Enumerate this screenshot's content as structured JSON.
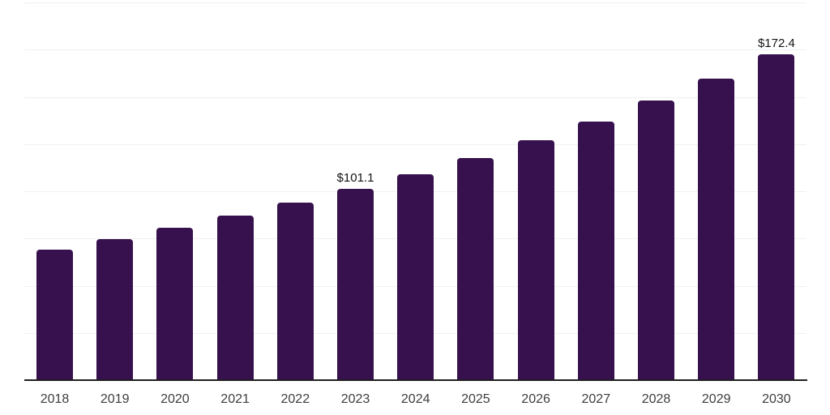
{
  "chart_data": {
    "type": "bar",
    "title": "",
    "categories": [
      "2018",
      "2019",
      "2020",
      "2021",
      "2022",
      "2023",
      "2024",
      "2025",
      "2026",
      "2027",
      "2028",
      "2029",
      "2030"
    ],
    "series": [
      {
        "name": "market-size",
        "values": [
          69.3,
          74.8,
          80.7,
          87.1,
          94.0,
          101.1,
          109.1,
          117.7,
          127.0,
          137.1,
          147.9,
          159.7,
          172.4
        ]
      }
    ],
    "data_labels": [
      {
        "category": "2023",
        "label": "$101.1"
      },
      {
        "category": "2030",
        "label": "$172.4"
      }
    ],
    "xlabel": "",
    "ylabel": "",
    "ylim": [
      0,
      200
    ],
    "grid_step": 25,
    "gridlines": "horizontal",
    "y_tick_labels_visible": false,
    "legend_position": "none",
    "colors": {
      "bar": "#36114D",
      "axis_line": "#1F1F1F",
      "gridline": "#F0F0F2",
      "data_label": "#141414",
      "tick_label": "#3D3D3D",
      "background": "#FFFFFF"
    }
  }
}
